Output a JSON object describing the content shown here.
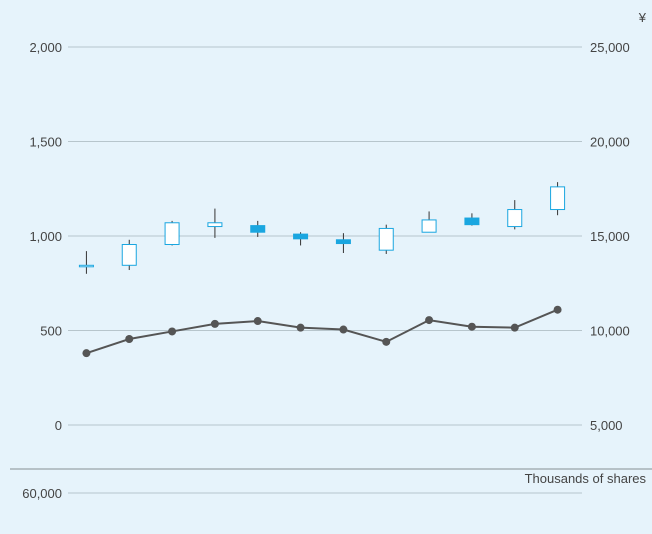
{
  "chart_data": [
    {
      "type": "candlestick-line",
      "title": "",
      "right_axis_unit": "¥",
      "left_axis": {
        "range": [
          0,
          2000
        ],
        "ticks": [
          0,
          500,
          1000,
          1500,
          2000
        ],
        "tick_labels": [
          "0",
          "500",
          "1,000",
          "1,500",
          "2,000"
        ]
      },
      "right_axis": {
        "range": [
          5000,
          25000
        ],
        "ticks": [
          5000,
          10000,
          15000,
          20000,
          25000
        ],
        "tick_labels": [
          "5,000",
          "10,000",
          "15,000",
          "20,000",
          "25,000"
        ]
      },
      "grid": true,
      "candles": [
        {
          "open": 840,
          "close": 845,
          "high": 920,
          "low": 800,
          "color": "#ffffff"
        },
        {
          "open": 845,
          "close": 955,
          "high": 980,
          "low": 820,
          "color": "#ffffff"
        },
        {
          "open": 955,
          "close": 1070,
          "high": 1080,
          "low": 950,
          "color": "#ffffff"
        },
        {
          "open": 1050,
          "close": 1070,
          "high": 1145,
          "low": 990,
          "color": "#ffffff"
        },
        {
          "open": 1055,
          "close": 1020,
          "high": 1080,
          "low": 995,
          "color": "#1aa6e0"
        },
        {
          "open": 1010,
          "close": 985,
          "high": 1020,
          "low": 950,
          "color": "#1aa6e0"
        },
        {
          "open": 980,
          "close": 960,
          "high": 1015,
          "low": 910,
          "color": "#1aa6e0"
        },
        {
          "open": 925,
          "close": 1040,
          "high": 1060,
          "low": 905,
          "color": "#ffffff"
        },
        {
          "open": 1020,
          "close": 1085,
          "high": 1130,
          "low": 1020,
          "color": "#ffffff"
        },
        {
          "open": 1095,
          "close": 1060,
          "high": 1120,
          "low": 1055,
          "color": "#1aa6e0"
        },
        {
          "open": 1050,
          "close": 1140,
          "high": 1190,
          "low": 1035,
          "color": "#ffffff"
        },
        {
          "open": 1140,
          "close": 1260,
          "high": 1285,
          "low": 1110,
          "color": "#ffffff"
        }
      ],
      "line_series": {
        "axis": "right",
        "values": [
          8800,
          9550,
          9950,
          10350,
          10500,
          10150,
          10050,
          9400,
          10550,
          10200,
          10150,
          11100
        ]
      }
    },
    {
      "type": "bar",
      "unit_label": "Thousands of shares",
      "top_tick_label": "60,000",
      "top_tick_value": 60000
    }
  ]
}
